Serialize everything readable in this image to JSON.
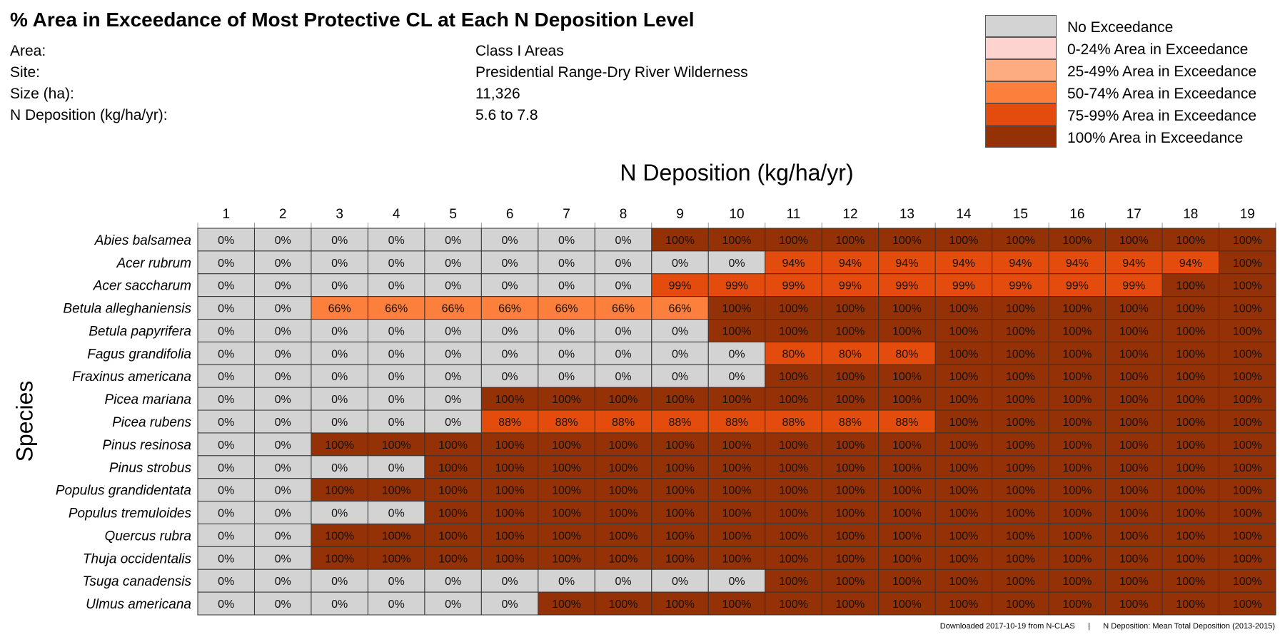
{
  "title": "% Area in Exceedance of Most Protective CL at Each N Deposition Level",
  "info": [
    {
      "label": "Area:",
      "value": "Class I Areas"
    },
    {
      "label": "Site:",
      "value": "Presidential Range-Dry River Wilderness"
    },
    {
      "label": "Size (ha):",
      "value": "11,326"
    },
    {
      "label": "N Deposition (kg/ha/yr):",
      "value": "5.6 to 7.8"
    }
  ],
  "legend": [
    {
      "label": "No Exceedance",
      "color": "#d3d3d3"
    },
    {
      "label": "0-24% Area in Exceedance",
      "color": "#fdd3cf"
    },
    {
      "label": "25-49% Area in Exceedance",
      "color": "#fdac82"
    },
    {
      "label": "50-74% Area in Exceedance",
      "color": "#fd7f3c"
    },
    {
      "label": "75-99% Area in Exceedance",
      "color": "#e44c0d"
    },
    {
      "label": "100% Area in Exceedance",
      "color": "#943106"
    }
  ],
  "footer": {
    "left": "Downloaded 2017-10-19 from N-CLAS",
    "separator": "|",
    "right": "N Deposition: Mean Total Deposition (2013-2015)"
  },
  "chart_data": {
    "type": "heatmap",
    "xlabel": "N Deposition (kg/ha/yr)",
    "ylabel": "Species",
    "x": [
      "1",
      "2",
      "3",
      "4",
      "5",
      "6",
      "7",
      "8",
      "9",
      "10",
      "11",
      "12",
      "13",
      "14",
      "15",
      "16",
      "17",
      "18",
      "19"
    ],
    "y": [
      "Abies balsamea",
      "Acer rubrum",
      "Acer saccharum",
      "Betula alleghaniensis",
      "Betula papyrifera",
      "Fagus grandifolia",
      "Fraxinus americana",
      "Picea mariana",
      "Picea rubens",
      "Pinus resinosa",
      "Pinus strobus",
      "Populus grandidentata",
      "Populus tremuloides",
      "Quercus rubra",
      "Thuja occidentalis",
      "Tsuga canadensis",
      "Ulmus americana"
    ],
    "values": [
      [
        0,
        0,
        0,
        0,
        0,
        0,
        0,
        0,
        100,
        100,
        100,
        100,
        100,
        100,
        100,
        100,
        100,
        100,
        100
      ],
      [
        0,
        0,
        0,
        0,
        0,
        0,
        0,
        0,
        0,
        0,
        94,
        94,
        94,
        94,
        94,
        94,
        94,
        94,
        100
      ],
      [
        0,
        0,
        0,
        0,
        0,
        0,
        0,
        0,
        99,
        99,
        99,
        99,
        99,
        99,
        99,
        99,
        99,
        100,
        100
      ],
      [
        0,
        0,
        66,
        66,
        66,
        66,
        66,
        66,
        66,
        100,
        100,
        100,
        100,
        100,
        100,
        100,
        100,
        100,
        100
      ],
      [
        0,
        0,
        0,
        0,
        0,
        0,
        0,
        0,
        0,
        100,
        100,
        100,
        100,
        100,
        100,
        100,
        100,
        100,
        100
      ],
      [
        0,
        0,
        0,
        0,
        0,
        0,
        0,
        0,
        0,
        0,
        80,
        80,
        80,
        100,
        100,
        100,
        100,
        100,
        100
      ],
      [
        0,
        0,
        0,
        0,
        0,
        0,
        0,
        0,
        0,
        0,
        100,
        100,
        100,
        100,
        100,
        100,
        100,
        100,
        100
      ],
      [
        0,
        0,
        0,
        0,
        0,
        100,
        100,
        100,
        100,
        100,
        100,
        100,
        100,
        100,
        100,
        100,
        100,
        100,
        100
      ],
      [
        0,
        0,
        0,
        0,
        0,
        88,
        88,
        88,
        88,
        88,
        88,
        88,
        88,
        100,
        100,
        100,
        100,
        100,
        100
      ],
      [
        0,
        0,
        100,
        100,
        100,
        100,
        100,
        100,
        100,
        100,
        100,
        100,
        100,
        100,
        100,
        100,
        100,
        100,
        100
      ],
      [
        0,
        0,
        0,
        0,
        100,
        100,
        100,
        100,
        100,
        100,
        100,
        100,
        100,
        100,
        100,
        100,
        100,
        100,
        100
      ],
      [
        0,
        0,
        100,
        100,
        100,
        100,
        100,
        100,
        100,
        100,
        100,
        100,
        100,
        100,
        100,
        100,
        100,
        100,
        100
      ],
      [
        0,
        0,
        0,
        0,
        100,
        100,
        100,
        100,
        100,
        100,
        100,
        100,
        100,
        100,
        100,
        100,
        100,
        100,
        100
      ],
      [
        0,
        0,
        100,
        100,
        100,
        100,
        100,
        100,
        100,
        100,
        100,
        100,
        100,
        100,
        100,
        100,
        100,
        100,
        100
      ],
      [
        0,
        0,
        100,
        100,
        100,
        100,
        100,
        100,
        100,
        100,
        100,
        100,
        100,
        100,
        100,
        100,
        100,
        100,
        100
      ],
      [
        0,
        0,
        0,
        0,
        0,
        0,
        0,
        0,
        0,
        0,
        100,
        100,
        100,
        100,
        100,
        100,
        100,
        100,
        100
      ],
      [
        0,
        0,
        0,
        0,
        0,
        0,
        100,
        100,
        100,
        100,
        100,
        100,
        100,
        100,
        100,
        100,
        100,
        100,
        100
      ]
    ],
    "value_suffix": "%"
  }
}
